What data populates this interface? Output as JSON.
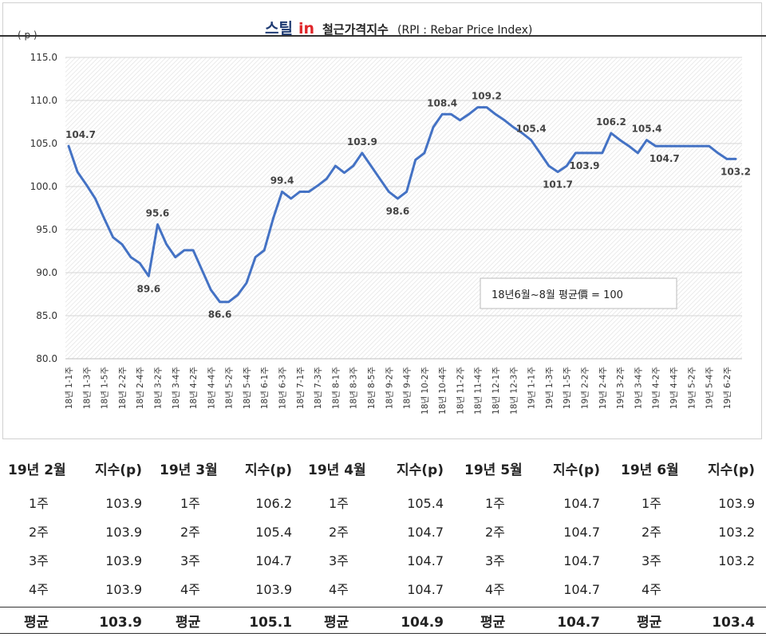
{
  "chart_data": {
    "type": "line",
    "title_logo": "스틸",
    "title_logo_in": "in",
    "title": "철근가격지수",
    "subtitle": "(RPI : Rebar Price Index)",
    "ylabel": "( p )",
    "ylim": [
      80,
      115
    ],
    "yticks": [
      "80.0",
      "85.0",
      "90.0",
      "95.0",
      "100.0",
      "105.0",
      "110.0",
      "115.0"
    ],
    "grid": true,
    "note": "18년6월~8월 평균價 = 100",
    "x_tick_labels": [
      "18년 1-1주",
      "18년 1-3주",
      "18년 1-5주",
      "18년 2-2주",
      "18년 2-4주",
      "18년 3-2주",
      "18년 3-4주",
      "18년 4-2주",
      "18년 4-4주",
      "18년 5-2주",
      "18년 5-4주",
      "18년 6-1주",
      "18년 6-3주",
      "18년 7-1주",
      "18년 7-3주",
      "18년 8-1주",
      "18년 8-3주",
      "18년 8-5주",
      "18년 9-2주",
      "18년 9-4주",
      "18년 10-2주",
      "18년 10-4주",
      "18년 11-2주",
      "18년 11-4주",
      "18년 12-1주",
      "18년 12-3주",
      "19년 1-1주",
      "19년 1-3주",
      "19년 1-5주",
      "19년 2-2주",
      "19년 2-4주",
      "19년 3-2주",
      "19년 3-4주",
      "19년 4-2주",
      "19년 4-4주",
      "19년 5-2주",
      "19년 5-4주",
      "19년 6-2주"
    ],
    "series": [
      {
        "values": [
          104.7,
          101.7,
          100.2,
          98.6,
          96.3,
          94.1,
          93.3,
          91.8,
          91.1,
          89.6,
          95.6,
          93.3,
          91.8,
          92.6,
          92.6,
          90.3,
          88.0,
          86.6,
          86.6,
          87.4,
          88.8,
          91.8,
          92.6,
          96.3,
          99.4,
          98.6,
          99.4,
          99.4,
          100.1,
          100.9,
          102.4,
          101.6,
          102.4,
          103.9,
          102.4,
          100.9,
          99.4,
          98.6,
          99.4,
          103.1,
          103.9,
          106.9,
          108.4,
          108.4,
          107.7,
          108.4,
          109.2,
          109.2,
          108.4,
          107.7,
          106.9,
          106.2,
          105.4,
          103.9,
          102.4,
          101.7,
          102.4,
          103.9,
          103.9,
          103.9,
          103.9,
          106.2,
          105.4,
          104.7,
          103.9,
          105.4,
          104.7,
          104.7,
          104.7,
          104.7,
          104.7,
          104.7,
          104.7,
          103.9,
          103.2,
          103.2
        ],
        "color": "#4472c4"
      }
    ],
    "data_labels": [
      {
        "i": 0,
        "text": "104.7",
        "pos": "above"
      },
      {
        "i": 9,
        "text": "89.6",
        "pos": "below"
      },
      {
        "i": 10,
        "text": "95.6",
        "pos": "above"
      },
      {
        "i": 17,
        "text": "86.6",
        "pos": "below"
      },
      {
        "i": 24,
        "text": "99.4",
        "pos": "above"
      },
      {
        "i": 33,
        "text": "103.9",
        "pos": "above"
      },
      {
        "i": 37,
        "text": "98.6",
        "pos": "below"
      },
      {
        "i": 42,
        "text": "108.4",
        "pos": "above"
      },
      {
        "i": 47,
        "text": "109.2",
        "pos": "above"
      },
      {
        "i": 52,
        "text": "105.4",
        "pos": "above"
      },
      {
        "i": 55,
        "text": "101.7",
        "pos": "below"
      },
      {
        "i": 58,
        "text": "103.9",
        "pos": "below"
      },
      {
        "i": 61,
        "text": "106.2",
        "pos": "above"
      },
      {
        "i": 65,
        "text": "105.4",
        "pos": "above"
      },
      {
        "i": 67,
        "text": "104.7",
        "pos": "below"
      },
      {
        "i": 75,
        "text": "103.2",
        "pos": "below"
      }
    ]
  },
  "table": {
    "months": [
      {
        "month": "19년 2월",
        "index_header": "지수(p)",
        "rows": [
          {
            "week": "1주",
            "value": "103.9"
          },
          {
            "week": "2주",
            "value": "103.9"
          },
          {
            "week": "3주",
            "value": "103.9"
          },
          {
            "week": "4주",
            "value": "103.9"
          }
        ],
        "avg_label": "평균",
        "avg": "103.9"
      },
      {
        "month": "19년 3월",
        "index_header": "지수(p)",
        "rows": [
          {
            "week": "1주",
            "value": "106.2"
          },
          {
            "week": "2주",
            "value": "105.4"
          },
          {
            "week": "3주",
            "value": "104.7"
          },
          {
            "week": "4주",
            "value": "103.9"
          }
        ],
        "avg_label": "평균",
        "avg": "105.1"
      },
      {
        "month": "19년 4월",
        "index_header": "지수(p)",
        "rows": [
          {
            "week": "1주",
            "value": "105.4"
          },
          {
            "week": "2주",
            "value": "104.7"
          },
          {
            "week": "3주",
            "value": "104.7"
          },
          {
            "week": "4주",
            "value": "104.7"
          }
        ],
        "avg_label": "평균",
        "avg": "104.9"
      },
      {
        "month": "19년 5월",
        "index_header": "지수(p)",
        "rows": [
          {
            "week": "1주",
            "value": "104.7"
          },
          {
            "week": "2주",
            "value": "104.7"
          },
          {
            "week": "3주",
            "value": "104.7"
          },
          {
            "week": "4주",
            "value": "104.7"
          }
        ],
        "avg_label": "평균",
        "avg": "104.7"
      },
      {
        "month": "19년 6월",
        "index_header": "지수(p)",
        "rows": [
          {
            "week": "1주",
            "value": "103.9"
          },
          {
            "week": "2주",
            "value": "103.2"
          },
          {
            "week": "3주",
            "value": "103.2"
          },
          {
            "week": "4주",
            "value": ""
          }
        ],
        "avg_label": "평균",
        "avg": "103.4"
      }
    ]
  }
}
